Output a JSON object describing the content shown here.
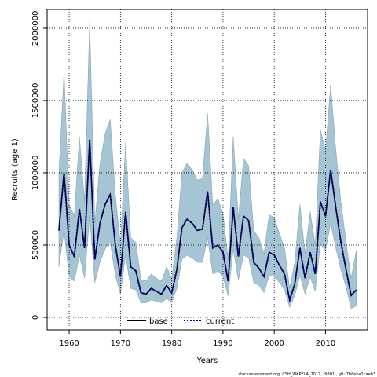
{
  "chart_data": {
    "type": "line",
    "x_label": "Years",
    "y_label": "Recruits (age 1)",
    "footer": "stockassessment.org, CSH_WKPELA_2017, r9301 , git: 7b8eba1caeb3",
    "x": [
      1958,
      1959,
      1960,
      1961,
      1962,
      1963,
      1964,
      1965,
      1966,
      1967,
      1968,
      1969,
      1970,
      1971,
      1972,
      1973,
      1974,
      1975,
      1976,
      1977,
      1978,
      1979,
      1980,
      1981,
      1982,
      1983,
      1984,
      1985,
      1986,
      1987,
      1988,
      1989,
      1990,
      1991,
      1992,
      1993,
      1994,
      1995,
      1996,
      1997,
      1998,
      1999,
      2000,
      2001,
      2002,
      2003,
      2004,
      2005,
      2006,
      2007,
      2008,
      2009,
      2010,
      2011,
      2012,
      2013,
      2014,
      2015,
      2016
    ],
    "band_color": "#a6c5d4",
    "upper": [
      1000000,
      1700000,
      780000,
      700000,
      1250000,
      800000,
      2050000,
      650000,
      1060000,
      1270000,
      1370000,
      850000,
      500000,
      1210000,
      550000,
      520000,
      260000,
      250000,
      300000,
      270000,
      250000,
      350000,
      270000,
      550000,
      1000000,
      1070000,
      1020000,
      950000,
      960000,
      1410000,
      780000,
      820000,
      720000,
      400000,
      1250000,
      680000,
      1100000,
      1050000,
      600000,
      550000,
      440000,
      710000,
      690000,
      580000,
      480000,
      200000,
      380000,
      780000,
      440000,
      730000,
      500000,
      1300000,
      1150000,
      1610000,
      1160000,
      800000,
      520000,
      270000,
      460000
    ],
    "lower": [
      350000,
      600000,
      280000,
      250000,
      430000,
      270000,
      700000,
      240000,
      380000,
      470000,
      520000,
      290000,
      160000,
      430000,
      200000,
      190000,
      100000,
      100000,
      120000,
      110000,
      100000,
      130000,
      100000,
      200000,
      400000,
      430000,
      410000,
      380000,
      380000,
      550000,
      300000,
      320000,
      280000,
      150000,
      470000,
      260000,
      430000,
      410000,
      240000,
      220000,
      170000,
      290000,
      280000,
      240000,
      190000,
      70000,
      150000,
      290000,
      160000,
      280000,
      180000,
      510000,
      460000,
      650000,
      480000,
      330000,
      210000,
      60000,
      80000
    ],
    "series": [
      {
        "name": "base",
        "color": "#000000",
        "style": "solid",
        "values": [
          600000,
          1000000,
          500000,
          420000,
          750000,
          480000,
          1230000,
          400000,
          650000,
          780000,
          850000,
          500000,
          280000,
          730000,
          350000,
          320000,
          170000,
          160000,
          200000,
          180000,
          160000,
          220000,
          170000,
          330000,
          620000,
          680000,
          650000,
          600000,
          610000,
          870000,
          480000,
          500000,
          450000,
          250000,
          760000,
          420000,
          700000,
          670000,
          380000,
          340000,
          280000,
          450000,
          430000,
          360000,
          300000,
          120000,
          230000,
          480000,
          270000,
          450000,
          300000,
          800000,
          700000,
          1020000,
          760000,
          520000,
          330000,
          150000,
          190000
        ]
      },
      {
        "name": "current",
        "color": "#00008b",
        "style": "dotted",
        "values": [
          600000,
          1000000,
          500000,
          420000,
          750000,
          480000,
          1230000,
          400000,
          650000,
          780000,
          850000,
          500000,
          280000,
          730000,
          350000,
          320000,
          170000,
          160000,
          200000,
          180000,
          160000,
          220000,
          170000,
          330000,
          620000,
          680000,
          650000,
          600000,
          610000,
          870000,
          480000,
          500000,
          450000,
          250000,
          760000,
          420000,
          700000,
          670000,
          380000,
          340000,
          280000,
          450000,
          430000,
          360000,
          300000,
          120000,
          230000,
          480000,
          270000,
          450000,
          300000,
          800000,
          700000,
          1020000,
          760000,
          520000,
          330000,
          150000,
          190000
        ]
      }
    ],
    "xlim": [
      1955.7,
      2018.2
    ],
    "ylim": [
      -87000,
      2130000
    ],
    "xticks": [
      1960,
      1970,
      1980,
      1990,
      2000,
      2010
    ],
    "yticks": [
      0,
      500000,
      1000000,
      1500000,
      2000000
    ],
    "grid": true,
    "legend": "bottom"
  }
}
